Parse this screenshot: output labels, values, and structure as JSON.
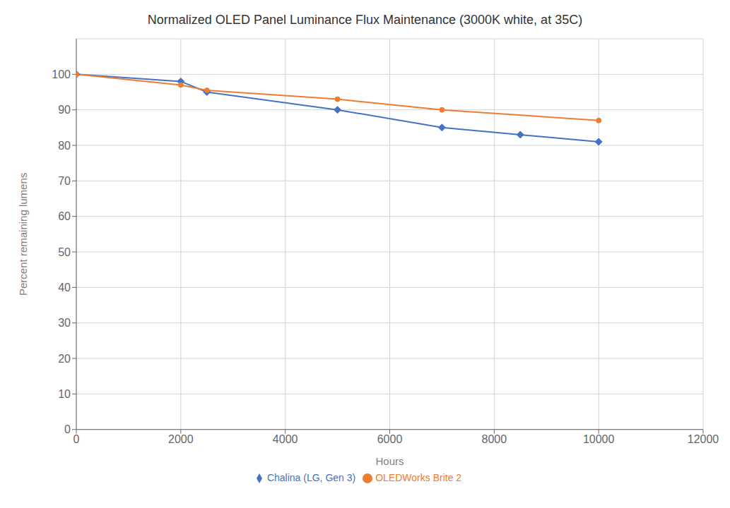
{
  "chart_data": {
    "type": "line",
    "title": "Normalized OLED Panel Luminance Flux Maintenance (3000K white, at 35C)",
    "xlabel": "Hours",
    "ylabel": "Percent remaining lumens",
    "xlim": [
      0,
      12000
    ],
    "ylim": [
      0,
      110
    ],
    "xticks": [
      0,
      2000,
      4000,
      6000,
      8000,
      10000,
      12000
    ],
    "yticks": [
      0,
      10,
      20,
      30,
      40,
      50,
      60,
      70,
      80,
      90,
      100
    ],
    "grid": true,
    "legend": "bottom",
    "series": [
      {
        "name": "Chalina (LG, Gen 3)",
        "color": "#4472C4",
        "marker": "diamond",
        "x": [
          0,
          2000,
          2500,
          5000,
          7000,
          8500,
          10000
        ],
        "values": [
          100,
          98,
          95,
          90,
          85,
          83,
          81
        ]
      },
      {
        "name": "OLEDWorks Brite 2",
        "color": "#ED7D31",
        "marker": "circle",
        "x": [
          0,
          2000,
          2500,
          5000,
          7000,
          10000
        ],
        "values": [
          100,
          97,
          95.5,
          93,
          90,
          87
        ]
      }
    ]
  }
}
